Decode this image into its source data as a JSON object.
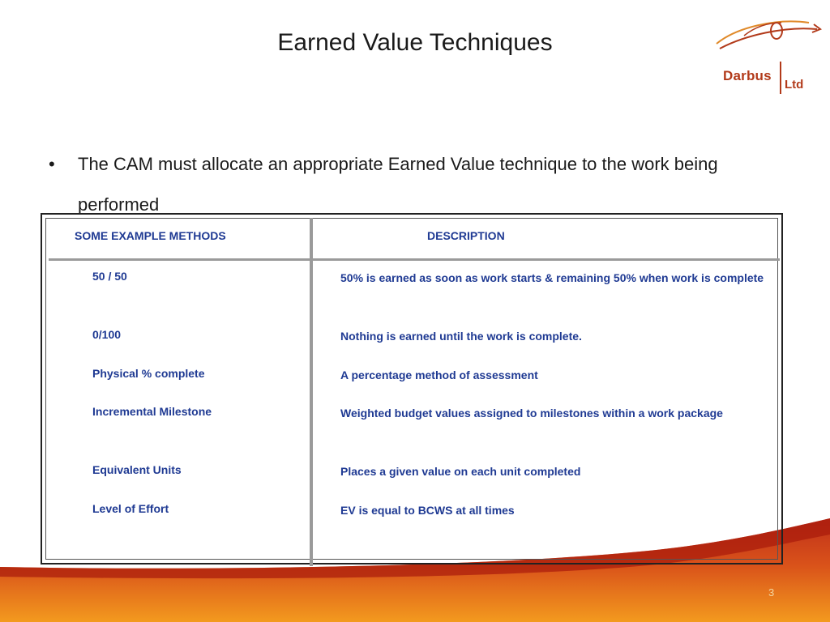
{
  "slide": {
    "title": "Earned Value Techniques",
    "page_number": "3"
  },
  "logo": {
    "name": "Darbus",
    "suffix": "Ltd"
  },
  "bullet": {
    "text": "The CAM must allocate an appropriate Earned Value technique to the work being performed"
  },
  "table": {
    "headers": {
      "methods": "SOME EXAMPLE METHODS",
      "description": "DESCRIPTION"
    },
    "rows": [
      {
        "method": "50 / 50",
        "description": "50% is earned as soon as work starts & remaining 50% when work is complete"
      },
      {
        "method": "0/100",
        "description": "Nothing is earned until the work is complete."
      },
      {
        "method": "Physical % complete",
        "description": "A percentage method of assessment"
      },
      {
        "method": "Incremental Milestone",
        "description": "Weighted budget values assigned to milestones within a work package"
      },
      {
        "method": "Equivalent Units",
        "description": "Places a given value on each unit completed"
      },
      {
        "method": "Level of Effort",
        "description": "EV is equal to BCWS at all times"
      }
    ]
  },
  "colors": {
    "text_accent": "#1f3a93",
    "brand": "#b23a1a",
    "wave_dark": "#b0200f",
    "wave_light": "#f39a1e"
  }
}
